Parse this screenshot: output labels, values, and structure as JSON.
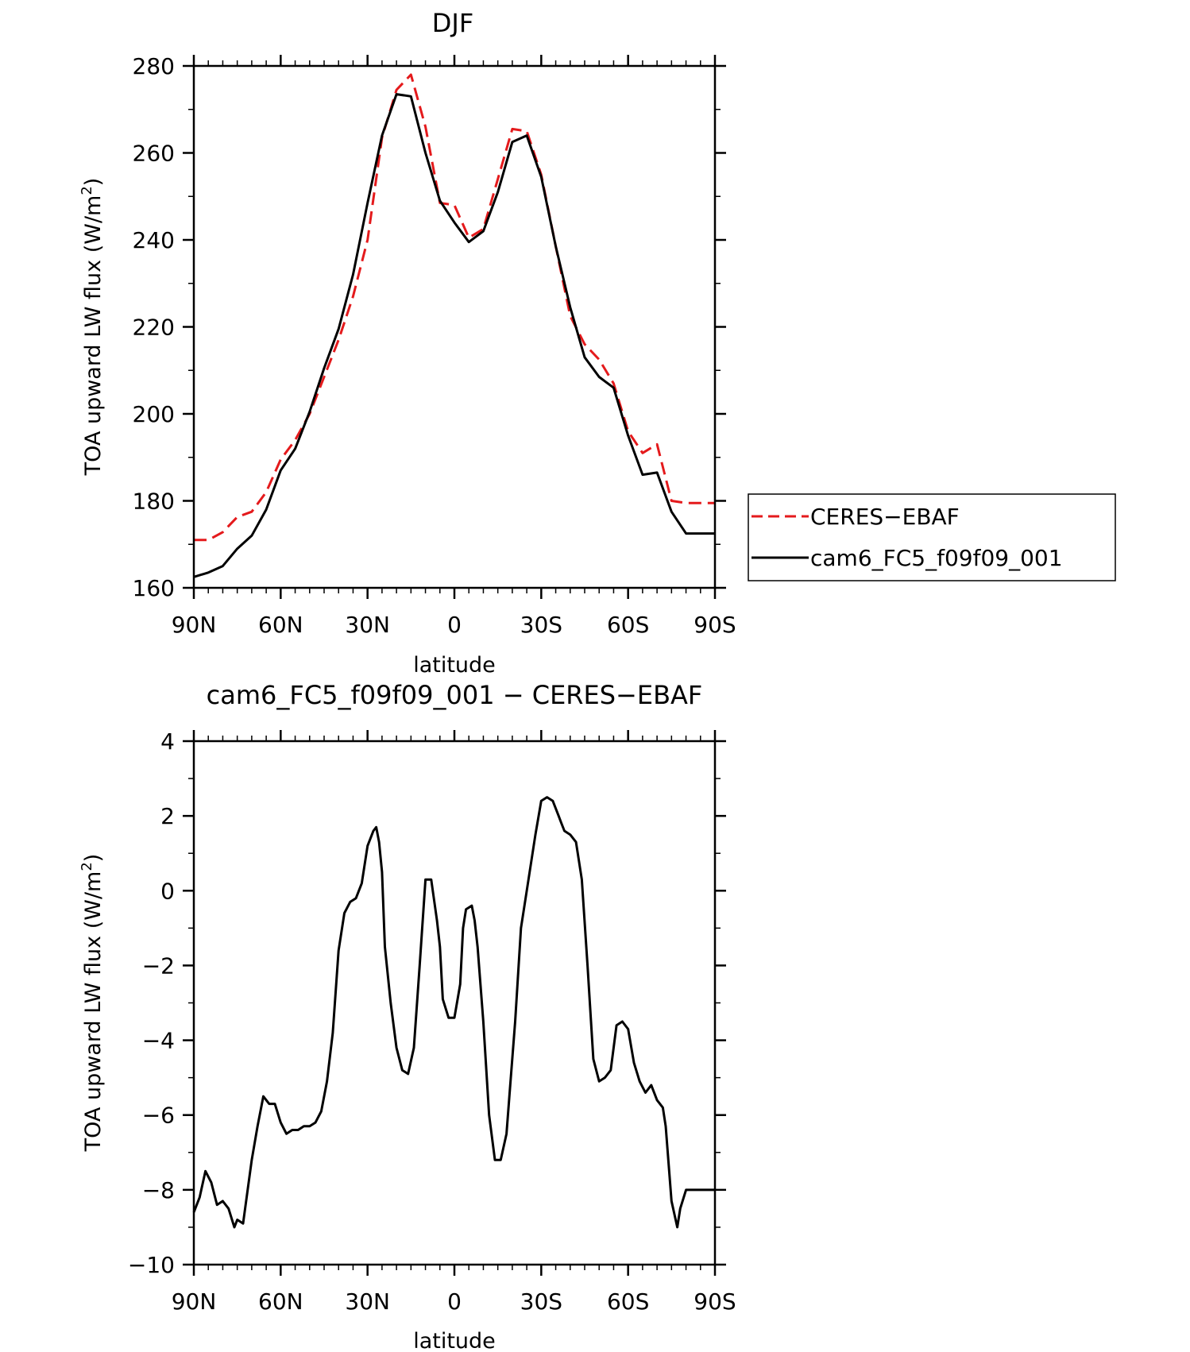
{
  "chart_data": [
    {
      "type": "line",
      "title": "DJF",
      "xlabel": "latitude",
      "ylabel": "TOA upward LW flux (W/m",
      "ylabel_superscript": "2",
      "ylabel_suffix": ")",
      "xlim": [
        90,
        -90
      ],
      "ylim": [
        160,
        280
      ],
      "x_ticks": [
        90,
        60,
        30,
        0,
        -30,
        -60,
        -90
      ],
      "x_tick_labels": [
        "90N",
        "60N",
        "30N",
        "0",
        "30S",
        "60S",
        "90S"
      ],
      "y_ticks": [
        160,
        180,
        200,
        220,
        240,
        260,
        280
      ],
      "y_tick_labels": [
        "160",
        "180",
        "200",
        "220",
        "240",
        "260",
        "280"
      ],
      "legend_position": "right",
      "colors": {
        "ceres": "#e41a1c",
        "model": "#000000"
      },
      "series": [
        {
          "name": "CERES-EBAF",
          "style": "dashed",
          "color": "#e41a1c",
          "x": [
            90,
            85,
            80,
            75,
            70,
            65,
            60,
            55,
            50,
            45,
            40,
            35,
            30,
            25,
            20,
            15,
            10,
            5,
            0,
            -5,
            -10,
            -15,
            -20,
            -25,
            -30,
            -35,
            -40,
            -45,
            -50,
            -55,
            -60,
            -65,
            -70,
            -75,
            -80,
            -82,
            -85,
            -90
          ],
          "y": [
            171,
            171,
            172.8,
            176.3,
            177.5,
            182,
            189.5,
            194,
            200,
            208.5,
            217,
            227,
            240,
            263.5,
            274.5,
            278,
            266,
            248.5,
            248,
            240.5,
            242.5,
            254,
            265.5,
            265,
            255,
            238.5,
            222.5,
            216,
            212.5,
            207,
            196,
            191,
            193,
            180,
            179.5,
            179.5,
            179.5,
            179.5
          ]
        },
        {
          "name": "cam6_FC5_f09f09_001",
          "style": "solid",
          "color": "#000000",
          "x": [
            90,
            85,
            80,
            75,
            70,
            65,
            60,
            55,
            50,
            45,
            40,
            35,
            30,
            25,
            20,
            15,
            10,
            5,
            0,
            -5,
            -10,
            -15,
            -20,
            -25,
            -30,
            -35,
            -40,
            -45,
            -50,
            -55,
            -60,
            -65,
            -70,
            -75,
            -80,
            -85,
            -90
          ],
          "y": [
            162.5,
            163.5,
            165,
            169,
            172,
            178,
            187,
            192,
            200.5,
            210.5,
            219.5,
            232,
            248.5,
            264,
            273.5,
            273,
            260,
            249,
            244,
            239.5,
            242,
            251,
            262.5,
            264,
            254.5,
            238.5,
            224.5,
            213,
            208.5,
            206,
            195,
            186,
            186.5,
            177.5,
            172.5,
            172.5,
            172.5
          ]
        }
      ]
    },
    {
      "type": "line",
      "title": "cam6_FC5_f09f09_001 − CERES−EBAF",
      "xlabel": "latitude",
      "ylabel": "TOA upward LW flux (W/m",
      "ylabel_superscript": "2",
      "ylabel_suffix": ")",
      "xlim": [
        90,
        -90
      ],
      "ylim": [
        -10,
        4
      ],
      "x_ticks": [
        90,
        60,
        30,
        0,
        -30,
        -60,
        -90
      ],
      "x_tick_labels": [
        "90N",
        "60N",
        "30N",
        "0",
        "30S",
        "60S",
        "90S"
      ],
      "y_ticks": [
        -10,
        -8,
        -6,
        -4,
        -2,
        0,
        2,
        4
      ],
      "y_tick_labels": [
        "−10",
        "−8",
        "−6",
        "−4",
        "−2",
        "0",
        "2",
        "4"
      ],
      "series": [
        {
          "style": "solid",
          "color": "#000000",
          "x": [
            90,
            88,
            86,
            84,
            82,
            80,
            78,
            76,
            75,
            73,
            70,
            68,
            66,
            64,
            62,
            60,
            58,
            56,
            54,
            52,
            50,
            48,
            46,
            44,
            42,
            40,
            38,
            36,
            34,
            32,
            30,
            28,
            27,
            26,
            25,
            24,
            22,
            20,
            18,
            16,
            14,
            12,
            10,
            8,
            6,
            5,
            4,
            2,
            0,
            -2,
            -3,
            -4,
            -6,
            -7,
            -8,
            -10,
            -12,
            -14,
            -16,
            -18,
            -19,
            -21,
            -23,
            -25,
            -28,
            -30,
            -32,
            -34,
            -36,
            -37,
            -38,
            -40,
            -42,
            -44,
            -46,
            -48,
            -50,
            -52,
            -54,
            -56,
            -58,
            -60,
            -62,
            -64,
            -66,
            -68,
            -70,
            -72,
            -73,
            -75,
            -77,
            -78,
            -80,
            -82,
            -84,
            -86,
            -87,
            -88,
            -89,
            -90
          ],
          "y": [
            -8.6,
            -8.2,
            -7.5,
            -7.8,
            -8.4,
            -8.3,
            -8.5,
            -9,
            -8.8,
            -8.9,
            -7.2,
            -6.3,
            -5.5,
            -5.7,
            -5.7,
            -6.2,
            -6.5,
            -6.4,
            -6.4,
            -6.3,
            -6.3,
            -6.2,
            -5.9,
            -5.1,
            -3.8,
            -1.6,
            -0.6,
            -0.3,
            -0.2,
            0.2,
            1.2,
            1.6,
            1.7,
            1.3,
            0.5,
            -1.5,
            -3,
            -4.2,
            -4.8,
            -4.9,
            -4.2,
            -2,
            0.3,
            0.3,
            -0.8,
            -1.5,
            -2.9,
            -3.4,
            -3.4,
            -2.5,
            -1,
            -0.5,
            -0.4,
            -0.8,
            -1.5,
            -3.5,
            -6,
            -7.2,
            -7.2,
            -6.5,
            -5.5,
            -3.5,
            -1,
            0,
            1.5,
            2.4,
            2.5,
            2.4,
            2,
            1.8,
            1.6,
            1.5,
            1.3,
            0.3,
            -2,
            -4.5,
            -5.1,
            -5,
            -4.8,
            -3.6,
            -3.5,
            -3.7,
            -4.6,
            -5.1,
            -5.4,
            -5.2,
            -5.6,
            -5.8,
            -6.3,
            -8.3,
            -9,
            -8.5,
            -8,
            -8,
            -8,
            -8,
            -8,
            -8,
            -8,
            -8
          ]
        }
      ]
    }
  ],
  "legend": {
    "items": [
      {
        "label": "CERES−EBAF"
      },
      {
        "label": "cam6_FC5_f09f09_001"
      }
    ]
  }
}
